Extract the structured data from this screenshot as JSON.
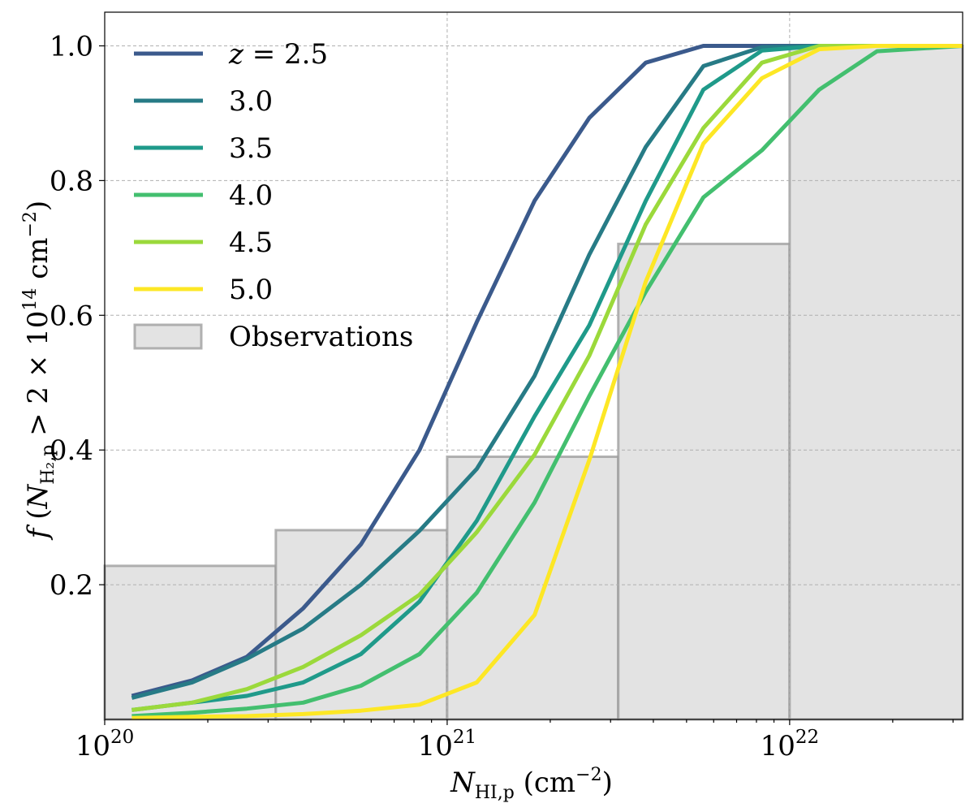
{
  "chart_data": {
    "type": "line",
    "title": "",
    "xlabel": "N_HI,p (cm^-2)",
    "ylabel": "f(N_H2,p > 2 × 10^14 cm^-2)",
    "xscale": "log",
    "xlim": [
      1e+20,
      3.2e+22
    ],
    "ylim": [
      0,
      1.05
    ],
    "grid": true,
    "legend_position": "top-left",
    "x_ticks": [
      {
        "value": 1e+20,
        "base": "10",
        "exp": "20"
      },
      {
        "value": 1e+21,
        "base": "10",
        "exp": "21"
      },
      {
        "value": 1e+22,
        "base": "10",
        "exp": "22"
      }
    ],
    "y_ticks": [
      {
        "value": 0.2,
        "label": "0.2"
      },
      {
        "value": 0.4,
        "label": "0.4"
      },
      {
        "value": 0.6,
        "label": "0.6"
      },
      {
        "value": 0.8,
        "label": "0.8"
      },
      {
        "value": 1.0,
        "label": "1.0"
      }
    ],
    "x": [
      1.2e+20,
      1.8e+20,
      2.6e+20,
      3.8e+20,
      5.6e+20,
      8.3e+20,
      1.22e+21,
      1.8e+21,
      2.6e+21,
      3.8e+21,
      5.6e+21,
      8.3e+21,
      1.22e+22,
      1.8e+22,
      3.2e+22
    ],
    "series": [
      {
        "name": "z = 2.5",
        "label": "= 2.5",
        "italic_prefix": "z",
        "color": "#3b5a8c",
        "values": [
          0.035,
          0.058,
          0.093,
          0.165,
          0.26,
          0.4,
          0.59,
          0.77,
          0.893,
          0.975,
          1.0,
          1.0,
          1.0,
          1.0,
          1.0
        ]
      },
      {
        "name": "3.0",
        "label": "3.0",
        "color": "#277b86",
        "values": [
          0.032,
          0.055,
          0.09,
          0.135,
          0.2,
          0.28,
          0.372,
          0.51,
          0.69,
          0.85,
          0.97,
          0.998,
          1.0,
          1.0,
          1.0
        ]
      },
      {
        "name": "3.5",
        "label": "3.5",
        "color": "#1f9a8a",
        "values": [
          0.014,
          0.025,
          0.035,
          0.055,
          0.097,
          0.175,
          0.295,
          0.45,
          0.585,
          0.77,
          0.935,
          0.993,
          1.0,
          1.0,
          1.0
        ]
      },
      {
        "name": "4.0",
        "label": "4.0",
        "color": "#43bf6f",
        "values": [
          0.005,
          0.01,
          0.016,
          0.025,
          0.05,
          0.097,
          0.188,
          0.322,
          0.48,
          0.635,
          0.775,
          0.845,
          0.935,
          0.992,
          1.0
        ]
      },
      {
        "name": "4.5",
        "label": "4.5",
        "color": "#9bd93b",
        "values": [
          0.014,
          0.025,
          0.045,
          0.078,
          0.125,
          0.185,
          0.278,
          0.393,
          0.54,
          0.735,
          0.878,
          0.975,
          1.0,
          1.0,
          1.0
        ]
      },
      {
        "name": "5.0",
        "label": "5.0",
        "color": "#fde725",
        "values": [
          0.002,
          0.004,
          0.005,
          0.008,
          0.013,
          0.022,
          0.055,
          0.155,
          0.385,
          0.65,
          0.855,
          0.952,
          0.995,
          1.0,
          1.0
        ]
      }
    ],
    "observations": {
      "label": "Observations",
      "bins": [
        {
          "x0": 1e+20,
          "x1": 3.16e+20,
          "value": 0.228
        },
        {
          "x0": 3.16e+20,
          "x1": 1e+21,
          "value": 0.281
        },
        {
          "x0": 1e+21,
          "x1": 3.16e+21,
          "value": 0.39
        },
        {
          "x0": 3.16e+21,
          "x1": 1e+22,
          "value": 0.706
        },
        {
          "x0": 1e+22,
          "x1": 3.2e+22,
          "value": 1.0
        }
      ]
    }
  }
}
